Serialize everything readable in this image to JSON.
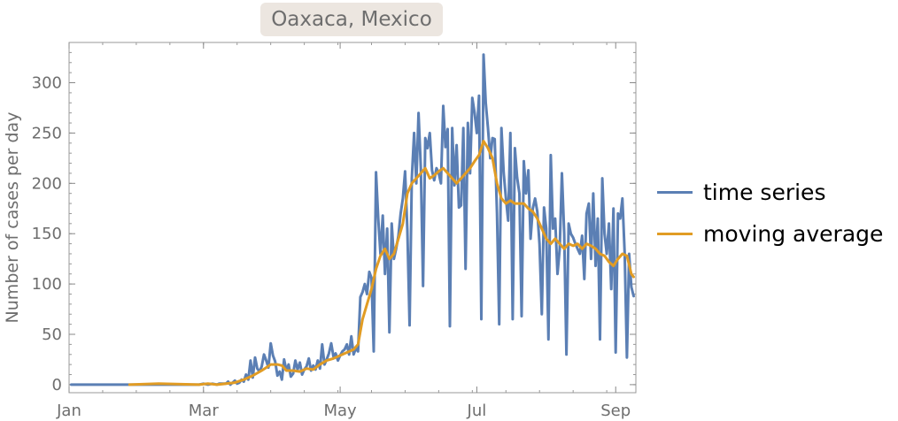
{
  "chart_data": {
    "type": "line",
    "title": "Oaxaca, Mexico",
    "ylabel": "Number of cases per day",
    "xlabel": "",
    "x_ticks": [
      "Jan",
      "Mar",
      "May",
      "Jul",
      "Sep"
    ],
    "x_tick_days": [
      0,
      60,
      121,
      182,
      244
    ],
    "x_domain": [
      0,
      253
    ],
    "ylim": [
      -8,
      340
    ],
    "y_ticks": [
      0,
      50,
      100,
      150,
      200,
      250,
      300
    ],
    "legend_position": "right",
    "series": [
      {
        "name": "time series",
        "color": "#5b7fb4",
        "points": [
          [
            1,
            0
          ],
          [
            27,
            0
          ],
          [
            48,
            0
          ],
          [
            58,
            0
          ],
          [
            60,
            1
          ],
          [
            62,
            0
          ],
          [
            64,
            1
          ],
          [
            66,
            0
          ],
          [
            67,
            1
          ],
          [
            70,
            1
          ],
          [
            71,
            3
          ],
          [
            72,
            0
          ],
          [
            73,
            2
          ],
          [
            74,
            4
          ],
          [
            75,
            1
          ],
          [
            76,
            2
          ],
          [
            77,
            5
          ],
          [
            78,
            3
          ],
          [
            79,
            10
          ],
          [
            80,
            5
          ],
          [
            81,
            24
          ],
          [
            82,
            7
          ],
          [
            83,
            27
          ],
          [
            84,
            16
          ],
          [
            85,
            13
          ],
          [
            86,
            18
          ],
          [
            87,
            30
          ],
          [
            88,
            24
          ],
          [
            89,
            17
          ],
          [
            90,
            41
          ],
          [
            91,
            29
          ],
          [
            92,
            23
          ],
          [
            93,
            9
          ],
          [
            94,
            13
          ],
          [
            95,
            5
          ],
          [
            96,
            25
          ],
          [
            97,
            14
          ],
          [
            98,
            20
          ],
          [
            99,
            8
          ],
          [
            100,
            11
          ],
          [
            101,
            24
          ],
          [
            102,
            15
          ],
          [
            103,
            22
          ],
          [
            104,
            10
          ],
          [
            105,
            15
          ],
          [
            106,
            18
          ],
          [
            107,
            26
          ],
          [
            108,
            14
          ],
          [
            109,
            19
          ],
          [
            110,
            15
          ],
          [
            111,
            24
          ],
          [
            112,
            16
          ],
          [
            113,
            40
          ],
          [
            114,
            20
          ],
          [
            115,
            25
          ],
          [
            116,
            31
          ],
          [
            117,
            41
          ],
          [
            118,
            28
          ],
          [
            119,
            31
          ],
          [
            120,
            24
          ],
          [
            121,
            29
          ],
          [
            122,
            33
          ],
          [
            123,
            35
          ],
          [
            124,
            40
          ],
          [
            125,
            30
          ],
          [
            126,
            48
          ],
          [
            127,
            30
          ],
          [
            128,
            36
          ],
          [
            129,
            33
          ],
          [
            130,
            87
          ],
          [
            131,
            92
          ],
          [
            132,
            100
          ],
          [
            133,
            90
          ],
          [
            134,
            112
          ],
          [
            135,
            106
          ],
          [
            136,
            33
          ],
          [
            137,
            211
          ],
          [
            138,
            165
          ],
          [
            139,
            130
          ],
          [
            140,
            168
          ],
          [
            141,
            110
          ],
          [
            142,
            155
          ],
          [
            143,
            52
          ],
          [
            144,
            160
          ],
          [
            145,
            125
          ],
          [
            146,
            135
          ],
          [
            147,
            148
          ],
          [
            148,
            170
          ],
          [
            149,
            185
          ],
          [
            150,
            212
          ],
          [
            151,
            153
          ],
          [
            152,
            59
          ],
          [
            153,
            205
          ],
          [
            154,
            250
          ],
          [
            155,
            200
          ],
          [
            156,
            270
          ],
          [
            157,
            215
          ],
          [
            158,
            98
          ],
          [
            159,
            245
          ],
          [
            160,
            235
          ],
          [
            161,
            250
          ],
          [
            162,
            213
          ],
          [
            163,
            203
          ],
          [
            164,
            215
          ],
          [
            165,
            210
          ],
          [
            166,
            200
          ],
          [
            167,
            277
          ],
          [
            168,
            236
          ],
          [
            169,
            254
          ],
          [
            170,
            58
          ],
          [
            171,
            255
          ],
          [
            172,
            198
          ],
          [
            173,
            238
          ],
          [
            174,
            176
          ],
          [
            175,
            178
          ],
          [
            176,
            255
          ],
          [
            177,
            115
          ],
          [
            178,
            260
          ],
          [
            179,
            210
          ],
          [
            180,
            285
          ],
          [
            181,
            270
          ],
          [
            182,
            250
          ],
          [
            183,
            287
          ],
          [
            184,
            65
          ],
          [
            185,
            328
          ],
          [
            186,
            280
          ],
          [
            187,
            255
          ],
          [
            188,
            225
          ],
          [
            189,
            245
          ],
          [
            190,
            244
          ],
          [
            191,
            170
          ],
          [
            192,
            60
          ],
          [
            193,
            255
          ],
          [
            194,
            210
          ],
          [
            195,
            185
          ],
          [
            196,
            163
          ],
          [
            197,
            250
          ],
          [
            198,
            65
          ],
          [
            199,
            235
          ],
          [
            200,
            206
          ],
          [
            201,
            190
          ],
          [
            202,
            68
          ],
          [
            203,
            222
          ],
          [
            204,
            190
          ],
          [
            205,
            213
          ],
          [
            206,
            145
          ],
          [
            207,
            175
          ],
          [
            208,
            185
          ],
          [
            209,
            172
          ],
          [
            210,
            140
          ],
          [
            211,
            70
          ],
          [
            212,
            176
          ],
          [
            213,
            155
          ],
          [
            214,
            45
          ],
          [
            215,
            228
          ],
          [
            216,
            155
          ],
          [
            217,
            165
          ],
          [
            218,
            110
          ],
          [
            219,
            135
          ],
          [
            220,
            210
          ],
          [
            221,
            150
          ],
          [
            222,
            30
          ],
          [
            223,
            160
          ],
          [
            224,
            150
          ],
          [
            225,
            146
          ],
          [
            226,
            140
          ],
          [
            227,
            135
          ],
          [
            228,
            130
          ],
          [
            229,
            148
          ],
          [
            230,
            105
          ],
          [
            231,
            170
          ],
          [
            232,
            180
          ],
          [
            233,
            125
          ],
          [
            234,
            190
          ],
          [
            235,
            118
          ],
          [
            236,
            165
          ],
          [
            237,
            45
          ],
          [
            238,
            205
          ],
          [
            239,
            150
          ],
          [
            240,
            130
          ],
          [
            241,
            160
          ],
          [
            242,
            95
          ],
          [
            243,
            175
          ],
          [
            244,
            32
          ],
          [
            245,
            170
          ],
          [
            246,
            165
          ],
          [
            247,
            185
          ],
          [
            248,
            130
          ],
          [
            249,
            27
          ],
          [
            250,
            130
          ],
          [
            251,
            97
          ],
          [
            252,
            88
          ]
        ]
      },
      {
        "name": "moving average",
        "color": "#e19c24",
        "points": [
          [
            27,
            0
          ],
          [
            40,
            1
          ],
          [
            48,
            0.5
          ],
          [
            58,
            0
          ],
          [
            62,
            1
          ],
          [
            66,
            0
          ],
          [
            70,
            1
          ],
          [
            74,
            2
          ],
          [
            78,
            5
          ],
          [
            82,
            9
          ],
          [
            86,
            14
          ],
          [
            88,
            17
          ],
          [
            90,
            20
          ],
          [
            93,
            20
          ],
          [
            95,
            19
          ],
          [
            97,
            14
          ],
          [
            100,
            14
          ],
          [
            103,
            13
          ],
          [
            106,
            16
          ],
          [
            109,
            15
          ],
          [
            112,
            20
          ],
          [
            115,
            24
          ],
          [
            118,
            26
          ],
          [
            121,
            29
          ],
          [
            124,
            32
          ],
          [
            127,
            35
          ],
          [
            129,
            40
          ],
          [
            131,
            65
          ],
          [
            133,
            80
          ],
          [
            135,
            95
          ],
          [
            137,
            115
          ],
          [
            139,
            128
          ],
          [
            141,
            135
          ],
          [
            143,
            125
          ],
          [
            145,
            130
          ],
          [
            147,
            145
          ],
          [
            149,
            160
          ],
          [
            151,
            190
          ],
          [
            153,
            200
          ],
          [
            155,
            205
          ],
          [
            157,
            210
          ],
          [
            159,
            215
          ],
          [
            161,
            205
          ],
          [
            163,
            208
          ],
          [
            165,
            212
          ],
          [
            167,
            215
          ],
          [
            169,
            210
          ],
          [
            171,
            205
          ],
          [
            173,
            200
          ],
          [
            175,
            205
          ],
          [
            177,
            210
          ],
          [
            179,
            215
          ],
          [
            181,
            222
          ],
          [
            183,
            228
          ],
          [
            185,
            242
          ],
          [
            187,
            235
          ],
          [
            189,
            225
          ],
          [
            191,
            200
          ],
          [
            193,
            185
          ],
          [
            195,
            180
          ],
          [
            197,
            183
          ],
          [
            199,
            180
          ],
          [
            201,
            180
          ],
          [
            203,
            180
          ],
          [
            205,
            175
          ],
          [
            207,
            172
          ],
          [
            209,
            165
          ],
          [
            211,
            155
          ],
          [
            213,
            145
          ],
          [
            215,
            140
          ],
          [
            217,
            145
          ],
          [
            219,
            140
          ],
          [
            221,
            135
          ],
          [
            223,
            140
          ],
          [
            225,
            138
          ],
          [
            227,
            140
          ],
          [
            229,
            135
          ],
          [
            231,
            140
          ],
          [
            233,
            138
          ],
          [
            235,
            135
          ],
          [
            237,
            130
          ],
          [
            239,
            128
          ],
          [
            241,
            122
          ],
          [
            243,
            118
          ],
          [
            245,
            125
          ],
          [
            247,
            130
          ],
          [
            249,
            128
          ],
          [
            251,
            110
          ],
          [
            252,
            107
          ]
        ]
      }
    ]
  }
}
